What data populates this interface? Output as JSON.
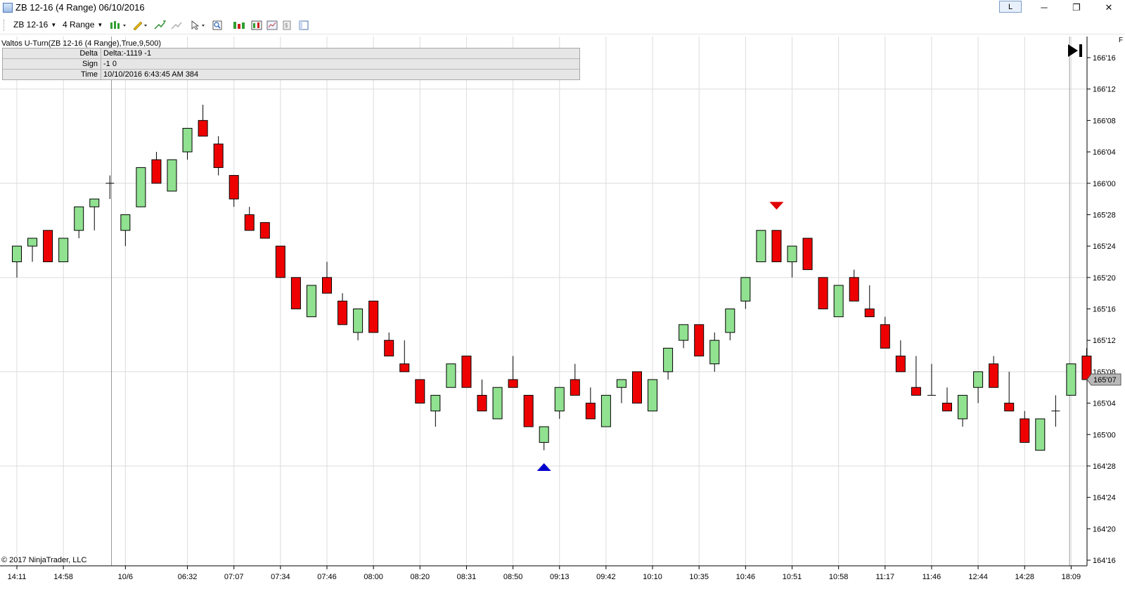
{
  "window": {
    "title": "ZB 12-16 (4 Range)  06/10/2016",
    "link_button": "L",
    "minimize_glyph": "─",
    "restore_glyph": "❐",
    "close_glyph": "✕"
  },
  "toolbar": {
    "instrument": "ZB 12-16",
    "interval": "4 Range",
    "icons": [
      "bars-style-icon",
      "pencil-draw-icon",
      "add-indicator-icon",
      "remove-indicator-icon",
      "cursor-select-icon",
      "zoom-icon",
      "strategy-icon",
      "properties-icon",
      "chart-trader-icon",
      "data-box-icon",
      "layout-icon"
    ]
  },
  "indicator": {
    "name": "Valtos U-Turn(ZB 12-16 (4 Range),True,9,500)",
    "rows": [
      {
        "key": "Delta",
        "value": "Delta:-1119 -1"
      },
      {
        "key": "Sign",
        "value": "-1 0"
      },
      {
        "key": "Time",
        "value": "10/10/2016 6:43:45 AM 384"
      }
    ]
  },
  "copyright": "© 2017 NinjaTrader, LLC",
  "edge_label": "F",
  "colors": {
    "up_candle": "#90e190",
    "down_candle": "#ee0000",
    "grid": "#dcdcdc",
    "axis": "#000000",
    "current_price_tag": "#b8b8b8",
    "buy_marker": "#0000cc",
    "sell_marker": "#e00000"
  },
  "chart_data": {
    "type": "candlestick",
    "instrument": "ZB 12-16",
    "bar_type": "4 Range",
    "y_tick_labels": [
      "166'16",
      "166'12",
      "166'08",
      "166'04",
      "166'00",
      "165'28",
      "165'24",
      "165'20",
      "165'16",
      "165'12",
      "165'08",
      "165'04",
      "165'00",
      "164'28",
      "164'24",
      "164'20",
      "164'16"
    ],
    "y_tick_values": [
      166.5,
      166.375,
      166.25,
      166.125,
      166.0,
      165.875,
      165.75,
      165.625,
      165.5,
      165.375,
      165.25,
      165.125,
      165.0,
      164.875,
      164.75,
      164.625,
      164.5
    ],
    "ylim": [
      164.5,
      166.5
    ],
    "x_tick_labels": [
      {
        "bar": 0,
        "label": "14:11"
      },
      {
        "bar": 3,
        "label": "14:58"
      },
      {
        "bar": 7,
        "label": "10/6"
      },
      {
        "bar": 11,
        "label": "06:32"
      },
      {
        "bar": 14,
        "label": "07:07"
      },
      {
        "bar": 17,
        "label": "07:34"
      },
      {
        "bar": 20,
        "label": "07:46"
      },
      {
        "bar": 23,
        "label": "08:00"
      },
      {
        "bar": 26,
        "label": "08:20"
      },
      {
        "bar": 29,
        "label": "08:31"
      },
      {
        "bar": 32,
        "label": "08:50"
      },
      {
        "bar": 35,
        "label": "09:13"
      },
      {
        "bar": 38,
        "label": "09:42"
      },
      {
        "bar": 41,
        "label": "10:10"
      },
      {
        "bar": 44,
        "label": "10:35"
      },
      {
        "bar": 47,
        "label": "10:46"
      },
      {
        "bar": 50,
        "label": "10:51"
      },
      {
        "bar": 53,
        "label": "10:58"
      },
      {
        "bar": 56,
        "label": "11:17"
      },
      {
        "bar": 59,
        "label": "11:46"
      },
      {
        "bar": 62,
        "label": "12:44"
      },
      {
        "bar": 65,
        "label": "14:28"
      },
      {
        "bar": 68,
        "label": "18:09"
      }
    ],
    "candles": [
      {
        "o": 165.6875,
        "h": 165.75,
        "l": 165.625,
        "c": 165.75
      },
      {
        "o": 165.75,
        "h": 165.78125,
        "l": 165.6875,
        "c": 165.78125
      },
      {
        "o": 165.8125,
        "h": 165.8125,
        "l": 165.6875,
        "c": 165.6875
      },
      {
        "o": 165.6875,
        "h": 165.78125,
        "l": 165.6875,
        "c": 165.78125
      },
      {
        "o": 165.8125,
        "h": 165.90625,
        "l": 165.78125,
        "c": 165.90625
      },
      {
        "o": 165.90625,
        "h": 165.9375,
        "l": 165.8125,
        "c": 165.9375
      },
      {
        "o": 166.0,
        "h": 166.03125,
        "l": 165.9375,
        "c": 166.0
      },
      {
        "o": 165.8125,
        "h": 165.875,
        "l": 165.75,
        "c": 165.875
      },
      {
        "o": 165.90625,
        "h": 166.0625,
        "l": 165.90625,
        "c": 166.0625
      },
      {
        "o": 166.09375,
        "h": 166.125,
        "l": 166.0,
        "c": 166.0
      },
      {
        "o": 165.96875,
        "h": 166.09375,
        "l": 165.96875,
        "c": 166.09375
      },
      {
        "o": 166.125,
        "h": 166.21875,
        "l": 166.09375,
        "c": 166.21875
      },
      {
        "o": 166.25,
        "h": 166.3125,
        "l": 166.1875,
        "c": 166.1875
      },
      {
        "o": 166.15625,
        "h": 166.1875,
        "l": 166.03125,
        "c": 166.0625
      },
      {
        "o": 166.03125,
        "h": 166.03125,
        "l": 165.90625,
        "c": 165.9375
      },
      {
        "o": 165.875,
        "h": 165.90625,
        "l": 165.8125,
        "c": 165.8125
      },
      {
        "o": 165.84375,
        "h": 165.84375,
        "l": 165.78125,
        "c": 165.78125
      },
      {
        "o": 165.75,
        "h": 165.75,
        "l": 165.625,
        "c": 165.625
      },
      {
        "o": 165.625,
        "h": 165.625,
        "l": 165.5,
        "c": 165.5
      },
      {
        "o": 165.46875,
        "h": 165.59375,
        "l": 165.46875,
        "c": 165.59375
      },
      {
        "o": 165.625,
        "h": 165.6875,
        "l": 165.5625,
        "c": 165.5625
      },
      {
        "o": 165.53125,
        "h": 165.5625,
        "l": 165.4375,
        "c": 165.4375
      },
      {
        "o": 165.40625,
        "h": 165.5,
        "l": 165.375,
        "c": 165.5
      },
      {
        "o": 165.53125,
        "h": 165.53125,
        "l": 165.40625,
        "c": 165.40625
      },
      {
        "o": 165.375,
        "h": 165.40625,
        "l": 165.3125,
        "c": 165.3125
      },
      {
        "o": 165.28125,
        "h": 165.375,
        "l": 165.25,
        "c": 165.25
      },
      {
        "o": 165.21875,
        "h": 165.21875,
        "l": 165.125,
        "c": 165.125
      },
      {
        "o": 165.09375,
        "h": 165.15625,
        "l": 165.03125,
        "c": 165.15625
      },
      {
        "o": 165.1875,
        "h": 165.28125,
        "l": 165.1875,
        "c": 165.28125
      },
      {
        "o": 165.3125,
        "h": 165.3125,
        "l": 165.1875,
        "c": 165.1875
      },
      {
        "o": 165.15625,
        "h": 165.21875,
        "l": 165.09375,
        "c": 165.09375
      },
      {
        "o": 165.0625,
        "h": 165.1875,
        "l": 165.0625,
        "c": 165.1875
      },
      {
        "o": 165.21875,
        "h": 165.3125,
        "l": 165.1875,
        "c": 165.1875
      },
      {
        "o": 165.15625,
        "h": 165.15625,
        "l": 165.03125,
        "c": 165.03125
      },
      {
        "o": 164.96875,
        "h": 165.03125,
        "l": 164.9375,
        "c": 165.03125
      },
      {
        "o": 165.09375,
        "h": 165.1875,
        "l": 165.0625,
        "c": 165.1875
      },
      {
        "o": 165.21875,
        "h": 165.28125,
        "l": 165.15625,
        "c": 165.15625
      },
      {
        "o": 165.125,
        "h": 165.1875,
        "l": 165.0625,
        "c": 165.0625
      },
      {
        "o": 165.03125,
        "h": 165.15625,
        "l": 165.03125,
        "c": 165.15625
      },
      {
        "o": 165.1875,
        "h": 165.21875,
        "l": 165.125,
        "c": 165.21875
      },
      {
        "o": 165.25,
        "h": 165.25,
        "l": 165.125,
        "c": 165.125
      },
      {
        "o": 165.09375,
        "h": 165.21875,
        "l": 165.09375,
        "c": 165.21875
      },
      {
        "o": 165.25,
        "h": 165.34375,
        "l": 165.21875,
        "c": 165.34375
      },
      {
        "o": 165.375,
        "h": 165.4375,
        "l": 165.34375,
        "c": 165.4375
      },
      {
        "o": 165.4375,
        "h": 165.4375,
        "l": 165.3125,
        "c": 165.3125
      },
      {
        "o": 165.28125,
        "h": 165.40625,
        "l": 165.25,
        "c": 165.375
      },
      {
        "o": 165.40625,
        "h": 165.5,
        "l": 165.375,
        "c": 165.5
      },
      {
        "o": 165.53125,
        "h": 165.625,
        "l": 165.5,
        "c": 165.625
      },
      {
        "o": 165.6875,
        "h": 165.8125,
        "l": 165.6875,
        "c": 165.8125
      },
      {
        "o": 165.8125,
        "h": 165.8125,
        "l": 165.6875,
        "c": 165.6875
      },
      {
        "o": 165.6875,
        "h": 165.75,
        "l": 165.625,
        "c": 165.75
      },
      {
        "o": 165.78125,
        "h": 165.78125,
        "l": 165.65625,
        "c": 165.65625
      },
      {
        "o": 165.625,
        "h": 165.625,
        "l": 165.5,
        "c": 165.5
      },
      {
        "o": 165.46875,
        "h": 165.59375,
        "l": 165.46875,
        "c": 165.59375
      },
      {
        "o": 165.625,
        "h": 165.65625,
        "l": 165.53125,
        "c": 165.53125
      },
      {
        "o": 165.5,
        "h": 165.59375,
        "l": 165.46875,
        "c": 165.46875
      },
      {
        "o": 165.4375,
        "h": 165.46875,
        "l": 165.34375,
        "c": 165.34375
      },
      {
        "o": 165.3125,
        "h": 165.375,
        "l": 165.25,
        "c": 165.25
      },
      {
        "o": 165.1875,
        "h": 165.3125,
        "l": 165.15625,
        "c": 165.15625
      },
      {
        "o": 165.15625,
        "h": 165.28125,
        "l": 165.15625,
        "c": 165.15625
      },
      {
        "o": 165.125,
        "h": 165.1875,
        "l": 165.09375,
        "c": 165.09375
      },
      {
        "o": 165.0625,
        "h": 165.15625,
        "l": 165.03125,
        "c": 165.15625
      },
      {
        "o": 165.1875,
        "h": 165.25,
        "l": 165.125,
        "c": 165.25
      },
      {
        "o": 165.28125,
        "h": 165.3125,
        "l": 165.1875,
        "c": 165.1875
      },
      {
        "o": 165.125,
        "h": 165.25,
        "l": 165.09375,
        "c": 165.09375
      },
      {
        "o": 165.0625,
        "h": 165.09375,
        "l": 164.96875,
        "c": 164.96875
      },
      {
        "o": 164.9375,
        "h": 165.0625,
        "l": 164.9375,
        "c": 165.0625
      },
      {
        "o": 165.09375,
        "h": 165.15625,
        "l": 165.03125,
        "c": 165.09375
      },
      {
        "o": 165.15625,
        "h": 165.28125,
        "l": 165.15625,
        "c": 165.28125
      },
      {
        "o": 165.3125,
        "h": 165.34375,
        "l": 165.21875,
        "c": 165.21875
      }
    ],
    "markers": [
      {
        "bar": 34,
        "type": "buy",
        "price": 164.875,
        "shape": "up-triangle"
      },
      {
        "bar": 49,
        "type": "sell",
        "price": 165.90625,
        "shape": "down-triangle"
      }
    ],
    "current_price": {
      "label": "165'07",
      "value": 165.21875
    },
    "grid": true
  }
}
